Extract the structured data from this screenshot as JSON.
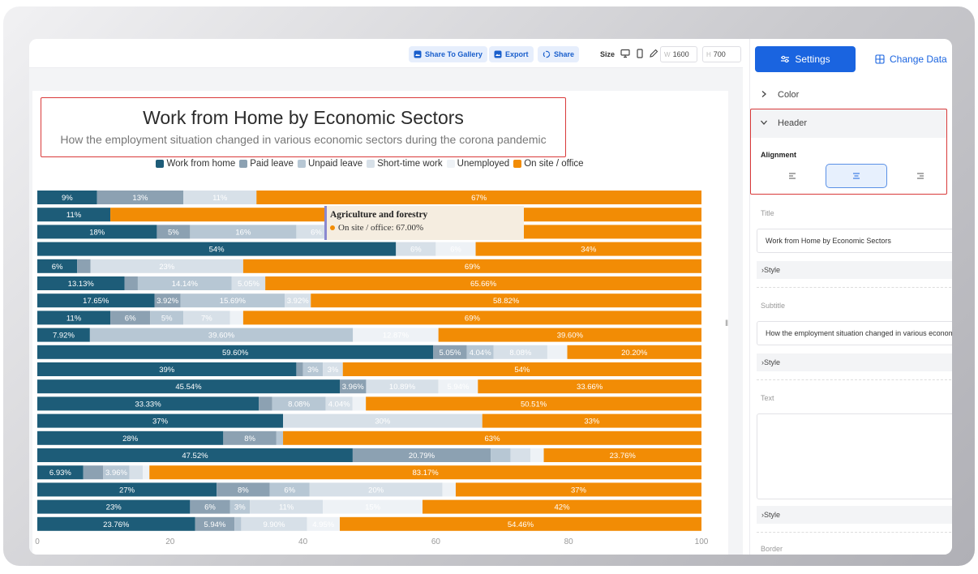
{
  "toolbar": {
    "share_gallery": "Share To Gallery",
    "export": "Export",
    "share": "Share",
    "size_label": "Size",
    "width_prefix": "W",
    "width_value": "1600",
    "height_prefix": "H",
    "height_value": "700"
  },
  "panel": {
    "tab_settings": "Settings",
    "tab_change_data": "Change Data",
    "color_label": "Color",
    "header_label": "Header",
    "alignment_label": "Alignment",
    "title_label": "Title",
    "title_value": "Work from Home by Economic Sectors",
    "style_label": "Style",
    "subtitle_label": "Subtitle",
    "subtitle_value": "How the employment situation changed in various economic sectors during the corona pandemic",
    "text_label": "Text",
    "border_label": "Border"
  },
  "tooltip": {
    "title": "Agriculture and forestry",
    "line": "On site / office: 67.00%"
  },
  "colors": {
    "work_from_home": "#1d5c78",
    "paid_leave": "#8ca1b2",
    "unpaid_leave": "#b7c7d4",
    "short_time_work": "#d7e0e8",
    "unemployed": "#eef2f6",
    "on_site": "#f28c05",
    "accent": "#1a64e0",
    "highlight": "#d93a3a"
  },
  "chart_data": {
    "type": "bar",
    "orientation": "horizontal",
    "stacked": true,
    "title": "Work from Home by Economic Sectors",
    "subtitle": "How the employment situation changed in various economic sectors during the corona pandemic",
    "xlim": [
      0,
      100
    ],
    "x_ticks": [
      "0",
      "20",
      "40",
      "60",
      "80",
      "100"
    ],
    "legend_position": "top",
    "series": [
      {
        "name": "Work from home",
        "values": [
          9,
          11,
          18,
          54,
          6,
          13.13,
          17.65,
          11,
          7.92,
          59.6,
          39,
          45.54,
          33.33,
          37,
          28,
          47.52,
          6.93,
          27,
          23,
          23.76
        ]
      },
      {
        "name": "Paid leave",
        "values": [
          13,
          0,
          5,
          0,
          2,
          2,
          3.92,
          6,
          0,
          5.05,
          1,
          3.96,
          2,
          0,
          8,
          20.79,
          3,
          8,
          6,
          5.94
        ]
      },
      {
        "name": "Unpaid leave",
        "values": [
          0,
          0,
          16,
          0,
          0,
          14.14,
          15.69,
          5,
          39.6,
          4.04,
          3,
          0,
          8.08,
          0,
          1,
          3,
          3.96,
          6,
          3,
          1
        ]
      },
      {
        "name": "Short-time work",
        "values": [
          11,
          0,
          6,
          6,
          23,
          5.05,
          3.92,
          7,
          0,
          8.08,
          3,
          10.89,
          4.04,
          30,
          0,
          3,
          2,
          20,
          11,
          9.9
        ]
      },
      {
        "name": "Unemployed",
        "values": [
          0,
          0,
          0,
          6,
          0,
          0,
          0,
          2,
          12.87,
          3,
          0,
          5.94,
          2,
          0,
          0,
          2,
          1,
          2,
          15,
          4.95
        ]
      },
      {
        "name": "On site / office",
        "values": [
          67,
          89,
          55,
          34,
          69,
          65.66,
          58.82,
          69,
          39.6,
          20.2,
          54,
          33.66,
          50.51,
          33,
          63,
          23.76,
          83.17,
          37,
          42,
          54.46
        ]
      }
    ],
    "labels": [
      [
        "9%",
        "13%",
        "",
        "11%",
        "",
        "67%"
      ],
      [
        "11%",
        "",
        "",
        "",
        "",
        ""
      ],
      [
        "18%",
        "5%",
        "16%",
        "6%",
        "",
        ""
      ],
      [
        "54%",
        "",
        "",
        "6%",
        "6%",
        "34%"
      ],
      [
        "6%",
        "",
        "",
        "23%",
        "",
        "69%"
      ],
      [
        "13.13%",
        "",
        "14.14%",
        "5.05%",
        "",
        "65.66%"
      ],
      [
        "17.65%",
        "3.92%",
        "15.69%",
        "3.92%",
        "",
        "58.82%"
      ],
      [
        "11%",
        "6%",
        "5%",
        "7%",
        "",
        "69%"
      ],
      [
        "7.92%",
        "",
        "39.60%",
        "",
        "12.87%",
        "39.60%"
      ],
      [
        "59.60%",
        "5.05%",
        "4.04%",
        "8.08%",
        "",
        "20.20%"
      ],
      [
        "39%",
        "",
        "3%",
        "3%",
        "",
        "54%"
      ],
      [
        "45.54%",
        "3.96%",
        "",
        "10.89%",
        "5.94%",
        "33.66%"
      ],
      [
        "33.33%",
        "",
        "8.08%",
        "4.04%",
        "",
        "50.51%"
      ],
      [
        "37%",
        "",
        "",
        "30%",
        "",
        "33%"
      ],
      [
        "28%",
        "8%",
        "",
        "",
        "",
        "63%"
      ],
      [
        "47.52%",
        "20.79%",
        "",
        "",
        "",
        "23.76%"
      ],
      [
        "6.93%",
        "",
        "3.96%",
        "",
        "",
        "83.17%"
      ],
      [
        "27%",
        "8%",
        "6%",
        "20%",
        "",
        "37%"
      ],
      [
        "23%",
        "6%",
        "3%",
        "11%",
        "15%",
        "42%"
      ],
      [
        "23.76%",
        "5.94%",
        "",
        "9.90%",
        "4.95%",
        "54.46%"
      ]
    ]
  }
}
